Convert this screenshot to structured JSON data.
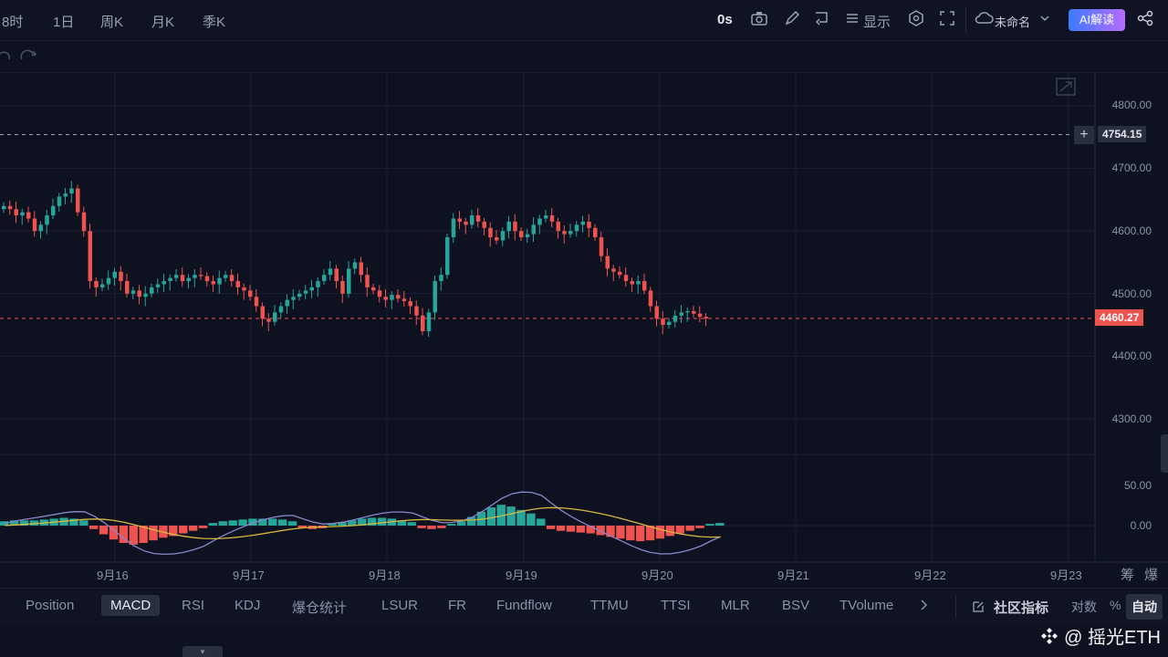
{
  "timeframes": [
    "8时",
    "1日",
    "周K",
    "月K",
    "季K"
  ],
  "toolbar": {
    "countdown": "0s",
    "display_label": "显示",
    "layout_name": "未命名",
    "ai_label": "AI解读"
  },
  "price_axis": {
    "ticks": [
      "4800.00",
      "4700.00",
      "4600.00",
      "4500.00",
      "4400.00",
      "4300.00"
    ],
    "crosshair_price": "4754.15",
    "last_price": "4460.27"
  },
  "macd_axis": {
    "ticks": [
      "50.00",
      "0.00"
    ]
  },
  "date_axis": [
    "9月16",
    "9月17",
    "9月18",
    "9月19",
    "9月20",
    "9月21",
    "9月22",
    "9月23"
  ],
  "axis_corner": [
    "筹",
    "爆"
  ],
  "indicators": [
    "Position",
    "MACD",
    "RSI",
    "KDJ",
    "爆仓统计",
    "LSUR",
    "FR",
    "Fundflow",
    "TTMU",
    "TTSI",
    "MLR",
    "BSV",
    "TVolume"
  ],
  "active_indicator": "MACD",
  "right_controls": {
    "community": "社区指标",
    "log_label": "对数",
    "percent_label": "%",
    "auto_label": "自动"
  },
  "watermark": "@ 摇光ETH",
  "colors": {
    "up": "#26a69a",
    "down": "#ef5350",
    "bg": "#0d1120",
    "dif": "#8a87c9",
    "dea": "#d6b93d"
  },
  "chart_data": {
    "type": "candlestick",
    "price_range": [
      4260,
      4840
    ],
    "last_price": 4460.27,
    "crosshair_price": 4754.15,
    "x_labels": [
      "9月16",
      "9月17",
      "9月18",
      "9月19",
      "9月20",
      "9月21",
      "9月22",
      "9月23"
    ],
    "closes": [
      4640,
      4635,
      4625,
      4630,
      4620,
      4600,
      4610,
      4625,
      4640,
      4655,
      4660,
      4668,
      4630,
      4600,
      4520,
      4510,
      4515,
      4525,
      4535,
      4520,
      4500,
      4505,
      4495,
      4500,
      4510,
      4515,
      4520,
      4525,
      4530,
      4520,
      4525,
      4530,
      4528,
      4520,
      4515,
      4525,
      4530,
      4520,
      4510,
      4505,
      4495,
      4480,
      4460,
      4455,
      4470,
      4480,
      4490,
      4495,
      4500,
      4505,
      4510,
      4520,
      4530,
      4540,
      4520,
      4500,
      4540,
      4550,
      4530,
      4510,
      4505,
      4495,
      4490,
      4498,
      4492,
      4488,
      4480,
      4465,
      4440,
      4470,
      4520,
      4530,
      4590,
      4620,
      4615,
      4610,
      4625,
      4615,
      4605,
      4590,
      4585,
      4600,
      4615,
      4600,
      4590,
      4595,
      4610,
      4620,
      4625,
      4615,
      4600,
      4595,
      4600,
      4610,
      4615,
      4605,
      4590,
      4560,
      4540,
      4535,
      4530,
      4520,
      4515,
      4520,
      4505,
      4480,
      4460,
      4450,
      4455,
      4465,
      4470,
      4472,
      4468,
      4463,
      4460.27
    ],
    "macd_histogram": [
      5,
      6,
      6,
      6,
      7,
      8,
      9,
      8,
      6,
      -4,
      -10,
      -16,
      -20,
      -22,
      -20,
      -17,
      -14,
      -12,
      -9,
      -6,
      -3,
      3,
      5,
      6,
      7,
      8,
      8,
      8,
      7,
      5,
      -3,
      -4,
      -3,
      2,
      4,
      6,
      8,
      9,
      9,
      8,
      6,
      4,
      -3,
      -4,
      -3,
      2,
      5,
      10,
      16,
      21,
      24,
      22,
      18,
      14,
      8,
      -4,
      -6,
      -7,
      -8,
      -9,
      -11,
      -13,
      -15,
      -17,
      -18,
      -17,
      -15,
      -12,
      -9,
      -6,
      -3,
      2,
      3
    ]
  }
}
